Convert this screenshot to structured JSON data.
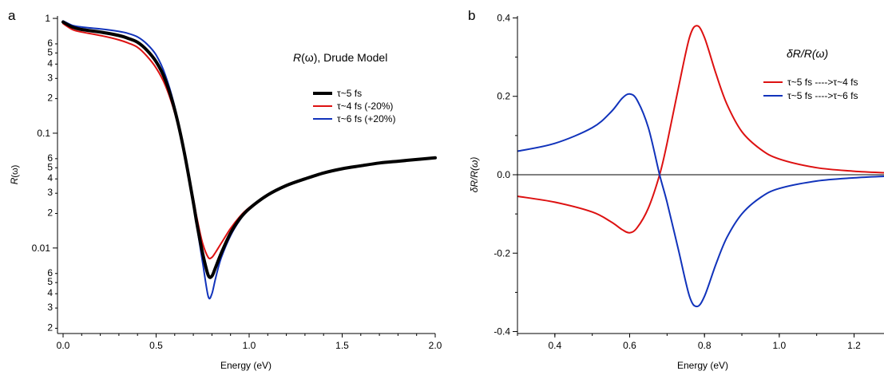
{
  "panels": {
    "a": {
      "letter": "a",
      "annotation_main": "R",
      "annotation_rest": "(ω), Drude Model",
      "xlabel": "Energy (eV)",
      "ylabel_main": "R",
      "ylabel_rest": "(ω)"
    },
    "b": {
      "letter": "b",
      "annotation": "δR/R(ω)",
      "xlabel": "Energy (eV)",
      "ylabel": "δR/R(ω)"
    }
  },
  "chart_data": [
    {
      "type": "line",
      "panel": "a",
      "title": "R(ω), Drude Model",
      "xlabel": "Energy (eV)",
      "ylabel": "R(ω)",
      "xscale": "linear",
      "yscale": "log",
      "xlim": [
        -0.03,
        2.0
      ],
      "ylim": [
        0.0018,
        1.05
      ],
      "x_ticks": [
        0.0,
        0.5,
        1.0,
        1.5,
        2.0
      ],
      "x_tick_labels": [
        "0.0",
        "0.5",
        "1.0",
        "1.5",
        "2.0"
      ],
      "y_major_ticks": [
        {
          "value": 0.01,
          "label": "0.01"
        },
        {
          "value": 0.1,
          "label": "0.1"
        },
        {
          "value": 1,
          "label": "1"
        }
      ],
      "y_minor_ticks": [
        {
          "value": 0.002,
          "label": "2"
        },
        {
          "value": 0.003,
          "label": "3"
        },
        {
          "value": 0.004,
          "label": "4"
        },
        {
          "value": 0.005,
          "label": "5"
        },
        {
          "value": 0.006,
          "label": "6"
        },
        {
          "value": 0.02,
          "label": "2"
        },
        {
          "value": 0.03,
          "label": "3"
        },
        {
          "value": 0.04,
          "label": "4"
        },
        {
          "value": 0.05,
          "label": "5"
        },
        {
          "value": 0.06,
          "label": "6"
        },
        {
          "value": 0.2,
          "label": "2"
        },
        {
          "value": 0.3,
          "label": "3"
        },
        {
          "value": 0.4,
          "label": "4"
        },
        {
          "value": 0.5,
          "label": "5"
        },
        {
          "value": 0.6,
          "label": "6"
        }
      ],
      "legend_position": "upper-right",
      "series": [
        {
          "name": "τ~5 fs",
          "color": "#000000",
          "width": 4,
          "points": [
            [
              0.0,
              0.93
            ],
            [
              0.05,
              0.84
            ],
            [
              0.1,
              0.8
            ],
            [
              0.2,
              0.76
            ],
            [
              0.3,
              0.71
            ],
            [
              0.35,
              0.67
            ],
            [
              0.4,
              0.62
            ],
            [
              0.45,
              0.53
            ],
            [
              0.5,
              0.42
            ],
            [
              0.55,
              0.29
            ],
            [
              0.6,
              0.16
            ],
            [
              0.65,
              0.07
            ],
            [
              0.7,
              0.025
            ],
            [
              0.72,
              0.016
            ],
            [
              0.75,
              0.009
            ],
            [
              0.78,
              0.0058
            ],
            [
              0.8,
              0.0057
            ],
            [
              0.82,
              0.0068
            ],
            [
              0.85,
              0.009
            ],
            [
              0.9,
              0.0135
            ],
            [
              0.95,
              0.018
            ],
            [
              1.0,
              0.022
            ],
            [
              1.1,
              0.029
            ],
            [
              1.2,
              0.035
            ],
            [
              1.3,
              0.04
            ],
            [
              1.4,
              0.045
            ],
            [
              1.5,
              0.049
            ],
            [
              1.6,
              0.052
            ],
            [
              1.7,
              0.055
            ],
            [
              1.8,
              0.057
            ],
            [
              1.9,
              0.059
            ],
            [
              2.0,
              0.061
            ]
          ]
        },
        {
          "name": "τ~4 fs (-20%)",
          "color": "#dd1111",
          "width": 2,
          "points": [
            [
              0.0,
              0.9
            ],
            [
              0.05,
              0.8
            ],
            [
              0.1,
              0.76
            ],
            [
              0.2,
              0.71
            ],
            [
              0.3,
              0.65
            ],
            [
              0.35,
              0.61
            ],
            [
              0.4,
              0.56
            ],
            [
              0.45,
              0.47
            ],
            [
              0.5,
              0.37
            ],
            [
              0.55,
              0.26
            ],
            [
              0.6,
              0.15
            ],
            [
              0.65,
              0.07
            ],
            [
              0.7,
              0.027
            ],
            [
              0.72,
              0.018
            ],
            [
              0.75,
              0.011
            ],
            [
              0.78,
              0.0083
            ],
            [
              0.8,
              0.0083
            ],
            [
              0.82,
              0.0092
            ],
            [
              0.85,
              0.011
            ],
            [
              0.9,
              0.0148
            ],
            [
              0.95,
              0.0188
            ],
            [
              1.0,
              0.0225
            ],
            [
              1.1,
              0.029
            ],
            [
              1.2,
              0.035
            ],
            [
              1.3,
              0.04
            ],
            [
              1.4,
              0.045
            ],
            [
              1.5,
              0.049
            ],
            [
              1.6,
              0.052
            ],
            [
              1.7,
              0.055
            ],
            [
              1.8,
              0.057
            ],
            [
              1.9,
              0.059
            ],
            [
              2.0,
              0.061
            ]
          ]
        },
        {
          "name": "τ~6 fs (+20%)",
          "color": "#1133bb",
          "width": 2,
          "points": [
            [
              0.0,
              0.95
            ],
            [
              0.05,
              0.87
            ],
            [
              0.1,
              0.84
            ],
            [
              0.2,
              0.81
            ],
            [
              0.3,
              0.77
            ],
            [
              0.35,
              0.74
            ],
            [
              0.4,
              0.69
            ],
            [
              0.45,
              0.6
            ],
            [
              0.5,
              0.48
            ],
            [
              0.55,
              0.32
            ],
            [
              0.6,
              0.17
            ],
            [
              0.65,
              0.07
            ],
            [
              0.7,
              0.024
            ],
            [
              0.72,
              0.015
            ],
            [
              0.75,
              0.0075
            ],
            [
              0.78,
              0.0038
            ],
            [
              0.8,
              0.004
            ],
            [
              0.82,
              0.0055
            ],
            [
              0.85,
              0.0082
            ],
            [
              0.9,
              0.0128
            ],
            [
              0.95,
              0.0175
            ],
            [
              1.0,
              0.0218
            ],
            [
              1.1,
              0.029
            ],
            [
              1.2,
              0.035
            ],
            [
              1.3,
              0.04
            ],
            [
              1.4,
              0.045
            ],
            [
              1.5,
              0.049
            ],
            [
              1.6,
              0.052
            ],
            [
              1.7,
              0.055
            ],
            [
              1.8,
              0.057
            ],
            [
              1.9,
              0.059
            ],
            [
              2.0,
              0.061
            ]
          ]
        }
      ]
    },
    {
      "type": "line",
      "panel": "b",
      "title": "δR/R(ω)",
      "xlabel": "Energy (eV)",
      "ylabel": "δR/R(ω)",
      "xscale": "linear",
      "yscale": "linear",
      "xlim": [
        0.3,
        1.28
      ],
      "ylim": [
        -0.405,
        0.405
      ],
      "x_ticks": [
        0.4,
        0.6,
        0.8,
        1.0,
        1.2
      ],
      "x_tick_labels": [
        "0.4",
        "0.6",
        "0.8",
        "1.0",
        "1.2"
      ],
      "y_ticks": [
        -0.4,
        -0.2,
        0.0,
        0.2,
        0.4
      ],
      "y_tick_labels": [
        "-0.4",
        "-0.2",
        "0.0",
        "0.2",
        "0.4"
      ],
      "zero_line": true,
      "legend_position": "upper-right",
      "series": [
        {
          "name": "τ~5 fs ---->τ~4 fs",
          "color": "#dd1111",
          "width": 2,
          "points": [
            [
              0.3,
              -0.055
            ],
            [
              0.4,
              -0.07
            ],
            [
              0.5,
              -0.095
            ],
            [
              0.55,
              -0.12
            ],
            [
              0.58,
              -0.14
            ],
            [
              0.6,
              -0.148
            ],
            [
              0.62,
              -0.135
            ],
            [
              0.65,
              -0.085
            ],
            [
              0.68,
              0.0
            ],
            [
              0.7,
              0.08
            ],
            [
              0.73,
              0.22
            ],
            [
              0.76,
              0.35
            ],
            [
              0.78,
              0.38
            ],
            [
              0.8,
              0.35
            ],
            [
              0.83,
              0.26
            ],
            [
              0.86,
              0.18
            ],
            [
              0.9,
              0.11
            ],
            [
              0.95,
              0.065
            ],
            [
              1.0,
              0.04
            ],
            [
              1.1,
              0.018
            ],
            [
              1.2,
              0.009
            ],
            [
              1.28,
              0.005
            ]
          ]
        },
        {
          "name": "τ~5 fs ---->τ~6 fs",
          "color": "#1133bb",
          "width": 2,
          "points": [
            [
              0.3,
              0.06
            ],
            [
              0.4,
              0.08
            ],
            [
              0.5,
              0.12
            ],
            [
              0.55,
              0.16
            ],
            [
              0.58,
              0.195
            ],
            [
              0.6,
              0.206
            ],
            [
              0.62,
              0.19
            ],
            [
              0.65,
              0.12
            ],
            [
              0.68,
              0.0
            ],
            [
              0.7,
              -0.07
            ],
            [
              0.73,
              -0.19
            ],
            [
              0.76,
              -0.31
            ],
            [
              0.78,
              -0.336
            ],
            [
              0.8,
              -0.31
            ],
            [
              0.83,
              -0.23
            ],
            [
              0.86,
              -0.16
            ],
            [
              0.9,
              -0.1
            ],
            [
              0.95,
              -0.058
            ],
            [
              1.0,
              -0.035
            ],
            [
              1.1,
              -0.016
            ],
            [
              1.2,
              -0.008
            ],
            [
              1.28,
              -0.004
            ]
          ]
        }
      ]
    }
  ]
}
